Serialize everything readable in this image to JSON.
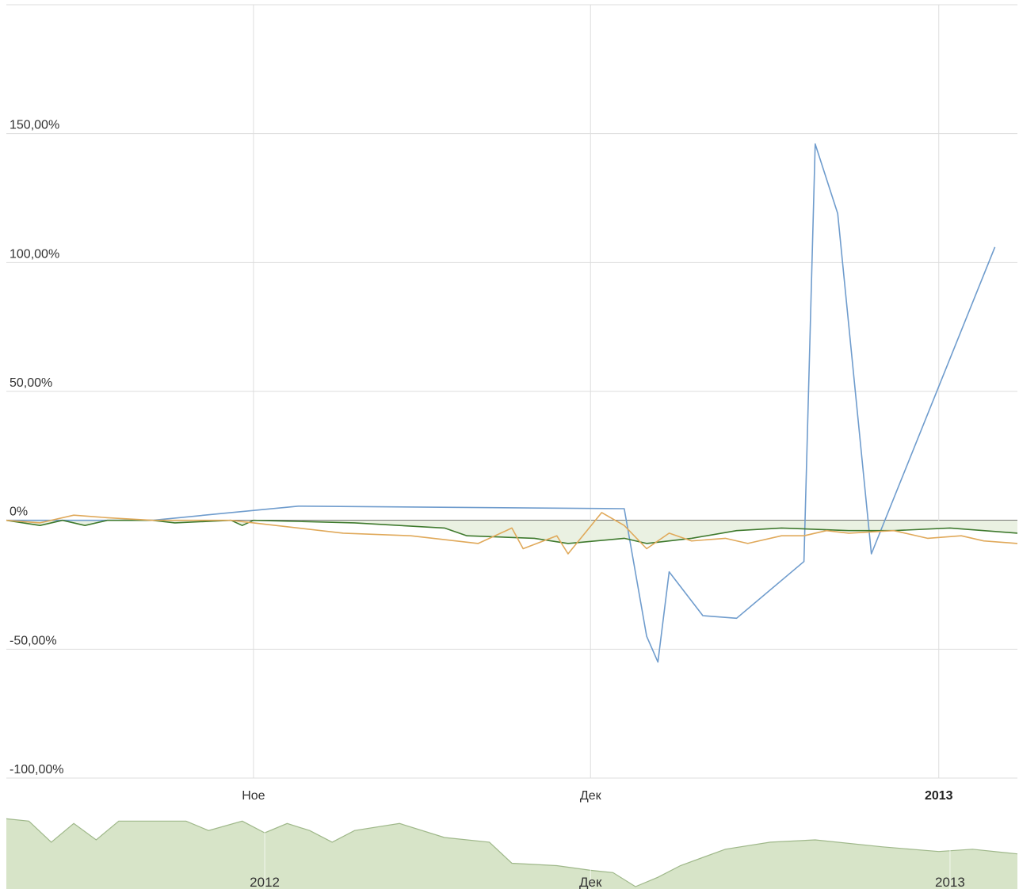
{
  "chart_data": {
    "type": "line",
    "title": "",
    "xlabel": "",
    "ylabel": "",
    "y_unit": "%",
    "ylim": [
      -100,
      200
    ],
    "ytick_labels": [
      "150,00%",
      "100,00%",
      "50,00%",
      "0%",
      "-50,00%",
      "-100,00%"
    ],
    "ytick_values": [
      150,
      100,
      50,
      0,
      -50,
      -100
    ],
    "xtick_labels": [
      {
        "label": "Ное",
        "date": "2012-11-01",
        "bold": false
      },
      {
        "label": "Дек",
        "date": "2012-12-01",
        "bold": false
      },
      {
        "label": "2013",
        "date": "2013-01-01",
        "bold": true
      }
    ],
    "xlim": [
      "2012-10-10",
      "2013-01-08"
    ],
    "grid": true,
    "series": [
      {
        "color": "#6f9ccd",
        "points": [
          [
            "2012-10-10",
            0
          ],
          [
            "2012-10-23",
            0
          ],
          [
            "2012-10-30",
            3
          ],
          [
            "2012-11-05",
            5.5
          ],
          [
            "2012-12-04",
            4.5
          ],
          [
            "2012-12-06",
            -45
          ],
          [
            "2012-12-07",
            -55
          ],
          [
            "2012-12-08",
            -20
          ],
          [
            "2012-12-11",
            -37
          ],
          [
            "2012-12-14",
            -38
          ],
          [
            "2012-12-20",
            -16
          ],
          [
            "2012-12-21",
            146
          ],
          [
            "2012-12-23",
            119
          ],
          [
            "2012-12-26",
            -13
          ],
          [
            "2013-01-06",
            106
          ]
        ]
      },
      {
        "color": "#3f7a2e",
        "points": [
          [
            "2012-10-10",
            0
          ],
          [
            "2012-10-13",
            -2
          ],
          [
            "2012-10-15",
            0
          ],
          [
            "2012-10-17",
            -2
          ],
          [
            "2012-10-19",
            0
          ],
          [
            "2012-10-23",
            0
          ],
          [
            "2012-10-25",
            -1
          ],
          [
            "2012-10-30",
            0
          ],
          [
            "2012-10-31",
            -2
          ],
          [
            "2012-11-01",
            0
          ],
          [
            "2012-11-10",
            -1
          ],
          [
            "2012-11-14",
            -2
          ],
          [
            "2012-11-18",
            -3
          ],
          [
            "2012-11-20",
            -6
          ],
          [
            "2012-11-26",
            -7
          ],
          [
            "2012-11-29",
            -9
          ],
          [
            "2012-12-04",
            -7
          ],
          [
            "2012-12-06",
            -9
          ],
          [
            "2012-12-10",
            -7
          ],
          [
            "2012-12-14",
            -4
          ],
          [
            "2012-12-18",
            -3
          ],
          [
            "2012-12-24",
            -4
          ],
          [
            "2012-12-28",
            -4
          ],
          [
            "2013-01-02",
            -3
          ],
          [
            "2013-01-08",
            -5
          ]
        ]
      },
      {
        "color": "#e0a95a",
        "points": [
          [
            "2012-10-10",
            0
          ],
          [
            "2012-10-13",
            -1
          ],
          [
            "2012-10-16",
            2
          ],
          [
            "2012-10-19",
            1
          ],
          [
            "2012-10-23",
            0
          ],
          [
            "2012-10-30",
            0
          ],
          [
            "2012-11-01",
            -1
          ],
          [
            "2012-11-05",
            -3
          ],
          [
            "2012-11-09",
            -5
          ],
          [
            "2012-11-15",
            -6
          ],
          [
            "2012-11-21",
            -9
          ],
          [
            "2012-11-24",
            -3
          ],
          [
            "2012-11-25",
            -11
          ],
          [
            "2012-11-28",
            -6
          ],
          [
            "2012-11-29",
            -13
          ],
          [
            "2012-12-02",
            3
          ],
          [
            "2012-12-04",
            -2
          ],
          [
            "2012-12-06",
            -11
          ],
          [
            "2012-12-08",
            -5
          ],
          [
            "2012-12-10",
            -8
          ],
          [
            "2012-12-13",
            -7
          ],
          [
            "2012-12-15",
            -9
          ],
          [
            "2012-12-18",
            -6
          ],
          [
            "2012-12-20",
            -6
          ],
          [
            "2012-12-22",
            -4
          ],
          [
            "2012-12-24",
            -5
          ],
          [
            "2012-12-28",
            -4
          ],
          [
            "2012-12-31",
            -7
          ],
          [
            "2013-01-03",
            -6
          ],
          [
            "2013-01-05",
            -8
          ],
          [
            "2013-01-08",
            -9
          ]
        ]
      }
    ],
    "navigator": {
      "fill": "#d7e4c8",
      "stroke": "#9fb88a",
      "labels": [
        {
          "label": "2012",
          "date": "2012-11-02"
        },
        {
          "label": "Дек",
          "date": "2012-12-01"
        },
        {
          "label": "2013",
          "date": "2013-01-02"
        }
      ],
      "points": [
        [
          "2012-10-10",
          40
        ],
        [
          "2012-10-12",
          38
        ],
        [
          "2012-10-14",
          20
        ],
        [
          "2012-10-16",
          36
        ],
        [
          "2012-10-18",
          22
        ],
        [
          "2012-10-20",
          38
        ],
        [
          "2012-10-26",
          38
        ],
        [
          "2012-10-28",
          30
        ],
        [
          "2012-10-31",
          38
        ],
        [
          "2012-11-02",
          28
        ],
        [
          "2012-11-04",
          36
        ],
        [
          "2012-11-06",
          30
        ],
        [
          "2012-11-08",
          20
        ],
        [
          "2012-11-10",
          30
        ],
        [
          "2012-11-14",
          36
        ],
        [
          "2012-11-18",
          24
        ],
        [
          "2012-11-22",
          20
        ],
        [
          "2012-11-24",
          2
        ],
        [
          "2012-11-28",
          0
        ],
        [
          "2012-12-01",
          -4
        ],
        [
          "2012-12-03",
          -6
        ],
        [
          "2012-12-05",
          -18
        ],
        [
          "2012-12-07",
          -10
        ],
        [
          "2012-12-09",
          0
        ],
        [
          "2012-12-13",
          14
        ],
        [
          "2012-12-17",
          20
        ],
        [
          "2012-12-21",
          22
        ],
        [
          "2012-12-27",
          16
        ],
        [
          "2013-01-01",
          12
        ],
        [
          "2013-01-04",
          14
        ],
        [
          "2013-01-08",
          10
        ]
      ],
      "range": [
        -20,
        45
      ]
    }
  }
}
